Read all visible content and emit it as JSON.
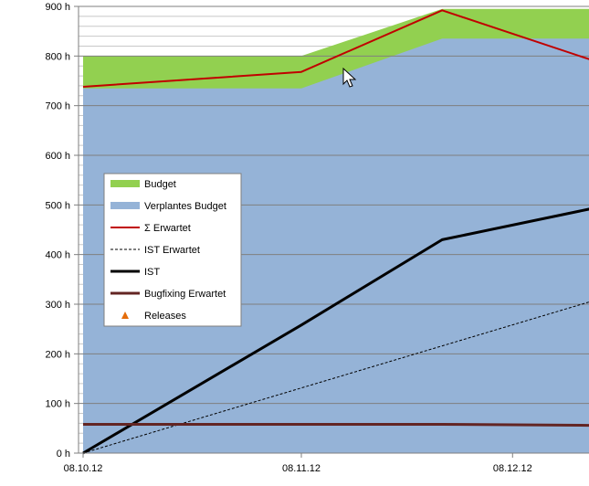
{
  "chart_data": {
    "type": "area",
    "title": "",
    "xlabel": "",
    "ylabel": "",
    "ylim": [
      0,
      900
    ],
    "y_unit": "h",
    "y_ticks": [
      "0 h",
      "100 h",
      "200 h",
      "300 h",
      "400 h",
      "500 h",
      "600 h",
      "700 h",
      "800 h",
      "900 h"
    ],
    "x_tick_labels": [
      "08.10.12",
      "08.11.12",
      "08.12.12"
    ],
    "grid": true,
    "legend_position": "left",
    "colors": {
      "budget": "#92d050",
      "planned": "#95b3d7",
      "expected": "#c00000",
      "ist": "#000000",
      "ist_expected": "#000000",
      "bugfix": "#632523",
      "releases": "#e46c0a"
    },
    "series": [
      {
        "name": "Budget",
        "kind": "area",
        "x": [
          "08.10.12",
          "08.11.12",
          "28.11.12",
          "19.12.12"
        ],
        "values": [
          800,
          800,
          895,
          895
        ]
      },
      {
        "name": "Verplantes Budget",
        "kind": "area",
        "x": [
          "08.10.12",
          "08.11.12",
          "28.11.12",
          "19.12.12"
        ],
        "values": [
          735,
          735,
          835,
          835
        ]
      },
      {
        "name": "Σ Erwartet",
        "kind": "line",
        "x": [
          "08.10.12",
          "08.11.12",
          "28.11.12",
          "19.12.12"
        ],
        "values": [
          738,
          768,
          892,
          793
        ]
      },
      {
        "name": "IST Erwartet",
        "kind": "dashed-line",
        "x": [
          "08.10.12",
          "19.12.12"
        ],
        "values": [
          0,
          305
        ]
      },
      {
        "name": "IST",
        "kind": "line",
        "x": [
          "08.10.12",
          "08.11.12",
          "28.11.12",
          "19.12.12"
        ],
        "values": [
          0,
          258,
          430,
          492
        ]
      },
      {
        "name": "Bugfixing Erwartet",
        "kind": "line",
        "x": [
          "08.10.12",
          "28.11.12",
          "19.12.12"
        ],
        "values": [
          58,
          58,
          56
        ]
      },
      {
        "name": "Releases",
        "kind": "marker",
        "x": [],
        "values": []
      }
    ]
  }
}
